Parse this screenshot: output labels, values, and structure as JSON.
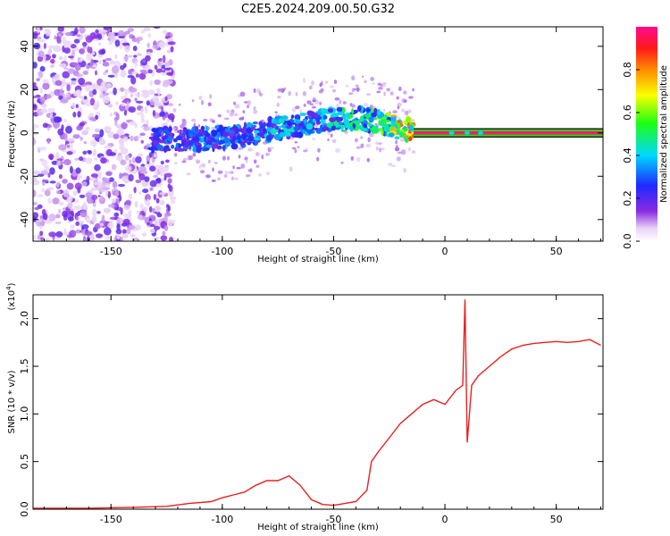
{
  "title": "C2E5.2024.209.00.50.G32",
  "chart_data": [
    {
      "type": "heatmap",
      "xlabel": "Height of straight line (km)",
      "ylabel": "Frequency (Hz)",
      "xlim": [
        -185,
        71
      ],
      "ylim": [
        -50,
        49
      ],
      "xticks": [
        -150,
        -100,
        -50,
        0,
        50
      ],
      "yticks": [
        -40,
        -20,
        0,
        20,
        40
      ],
      "grid": false,
      "colorbar": {
        "label": "Normalized spectral amplitude",
        "range": [
          0,
          1
        ],
        "ticks": [
          0.0,
          0.2,
          0.4,
          0.6,
          0.8
        ],
        "colormap": "white-violet-blue-cyan-green-yellow-red-magenta"
      },
      "ridge": {
        "x": [
          -130,
          -120,
          -110,
          -100,
          -90,
          -80,
          -70,
          -60,
          -50,
          -45,
          -40,
          -35,
          -30,
          -25,
          -20,
          -15,
          -12,
          0,
          10,
          20,
          40,
          70
        ],
        "y": [
          -3,
          -3,
          -3,
          -2,
          -1,
          1,
          3,
          5,
          6,
          6,
          7,
          6,
          5,
          4,
          2,
          1,
          0,
          0,
          0,
          0,
          0,
          0
        ],
        "amplitude": [
          0.3,
          0.3,
          0.35,
          0.35,
          0.35,
          0.4,
          0.4,
          0.4,
          0.45,
          0.5,
          0.55,
          0.5,
          0.55,
          0.65,
          0.8,
          0.85,
          0.9,
          0.9,
          0.9,
          0.9,
          0.9,
          0.9
        ]
      }
    },
    {
      "type": "line",
      "xlabel": "Height of straight line (km)",
      "ylabel": "SNR (10 * v/v)",
      "y_multiplier": "(x10",
      "y_multiplier_exp": "4",
      "y_multiplier_close": ")",
      "xlim": [
        -185,
        71
      ],
      "ylim": [
        0,
        2.25
      ],
      "xticks": [
        -150,
        -100,
        -50,
        0,
        50
      ],
      "yticks": [
        "0.0",
        "0.5",
        "1.0",
        "1.5",
        "2.0"
      ],
      "grid": false,
      "series": [
        {
          "color": "#e82020",
          "x": [
            -185,
            -160,
            -140,
            -125,
            -115,
            -105,
            -100,
            -95,
            -90,
            -85,
            -80,
            -75,
            -70,
            -65,
            -60,
            -55,
            -50,
            -45,
            -40,
            -35,
            -33,
            -30,
            -25,
            -20,
            -15,
            -10,
            -5,
            0,
            5,
            8,
            9,
            10,
            12,
            15,
            20,
            25,
            30,
            35,
            40,
            45,
            50,
            55,
            60,
            65,
            70
          ],
          "y": [
            0.01,
            0.01,
            0.02,
            0.03,
            0.06,
            0.08,
            0.12,
            0.15,
            0.18,
            0.25,
            0.3,
            0.3,
            0.35,
            0.25,
            0.1,
            0.05,
            0.04,
            0.06,
            0.08,
            0.2,
            0.5,
            0.6,
            0.75,
            0.9,
            1.0,
            1.1,
            1.15,
            1.1,
            1.25,
            1.3,
            2.2,
            0.7,
            1.3,
            1.4,
            1.5,
            1.6,
            1.68,
            1.72,
            1.74,
            1.75,
            1.76,
            1.75,
            1.76,
            1.78,
            1.72
          ]
        }
      ]
    }
  ]
}
